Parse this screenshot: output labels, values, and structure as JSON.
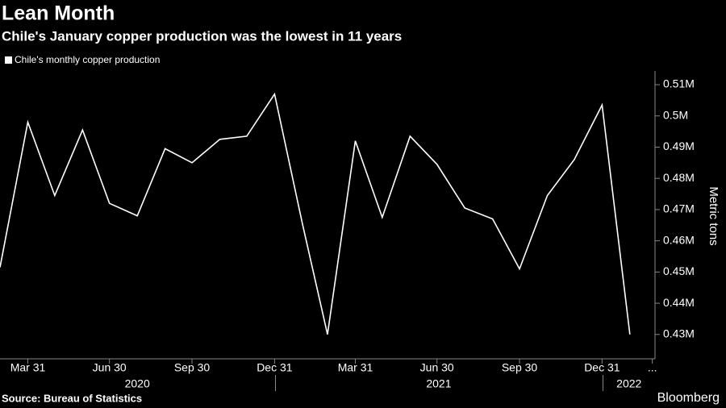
{
  "chart_data": {
    "type": "line",
    "title": "Lean Month",
    "subtitle": "Chile's January copper production was the lowest in 11 years",
    "y_label": "Metric tons",
    "source": "Source: Bureau of Statistics",
    "brand": "Bloomberg",
    "x": [
      "2020-02-29",
      "2020-03-31",
      "2020-04-30",
      "2020-05-31",
      "2020-06-30",
      "2020-07-31",
      "2020-08-31",
      "2020-09-30",
      "2020-10-31",
      "2020-11-30",
      "2020-12-31",
      "2021-01-31",
      "2021-02-28",
      "2021-03-31",
      "2021-04-30",
      "2021-05-31",
      "2021-06-30",
      "2021-07-31",
      "2021-08-31",
      "2021-09-30",
      "2021-10-31",
      "2021-11-30",
      "2021-12-31",
      "2022-01-31"
    ],
    "series": [
      {
        "name": "Chile's monthly copper production",
        "color": "#ffffff",
        "values": [
          451500,
          498000,
          474500,
          495500,
          472000,
          468000,
          489500,
          485000,
          492500,
          493500,
          507000,
          465500,
          430000,
          492000,
          467500,
          493500,
          484500,
          470500,
          467000,
          451000,
          474500,
          486000,
          503500,
          430000
        ]
      }
    ],
    "xlim": [
      "2020-02-29",
      "2022-02-28"
    ],
    "xticks": [
      {
        "value": "2020-03-31",
        "label": "Mar 31"
      },
      {
        "value": "2020-06-30",
        "label": "Jun 30"
      },
      {
        "value": "2020-09-30",
        "label": "Sep 30"
      },
      {
        "value": "2020-12-31",
        "label": "Dec 31"
      },
      {
        "value": "2021-03-31",
        "label": "Mar 31"
      },
      {
        "value": "2021-06-30",
        "label": "Jun 30"
      },
      {
        "value": "2021-09-30",
        "label": "Sep 30"
      },
      {
        "value": "2021-12-31",
        "label": "Dec 31"
      },
      {
        "value": "2022-02-25",
        "label": "..."
      }
    ],
    "years": [
      "2020",
      "2021",
      "2022"
    ],
    "ylim": [
      422200,
      514400
    ],
    "yticks": [
      {
        "value": 430000,
        "label": "0.43M"
      },
      {
        "value": 440000,
        "label": "0.44M"
      },
      {
        "value": 450000,
        "label": "0.45M"
      },
      {
        "value": 460000,
        "label": "0.46M"
      },
      {
        "value": 470000,
        "label": "0.47M"
      },
      {
        "value": 480000,
        "label": "0.48M"
      },
      {
        "value": 490000,
        "label": "0.49M"
      },
      {
        "value": 500000,
        "label": "0.5M"
      },
      {
        "value": 510000,
        "label": "0.51M"
      }
    ],
    "grid": false
  }
}
